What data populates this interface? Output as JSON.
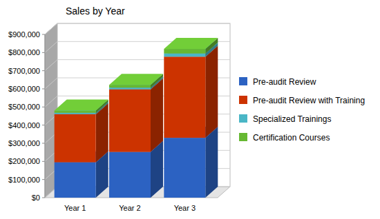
{
  "chart_data": {
    "type": "bar",
    "title": "Sales by Year",
    "categories": [
      "Year 1",
      "Year 2",
      "Year 3"
    ],
    "series": [
      {
        "name": "Pre-audit Review",
        "color": "#2c62c2",
        "values": [
          195000,
          252000,
          330000
        ]
      },
      {
        "name": "Pre-audit Review with Training",
        "color": "#cc3300",
        "values": [
          265000,
          345000,
          447000
        ]
      },
      {
        "name": "Specialized Trainings",
        "color": "#4ab6c6",
        "values": [
          8000,
          10000,
          18000
        ]
      },
      {
        "name": "Certification Courses",
        "color": "#66b832",
        "values": [
          12000,
          15000,
          25000
        ]
      }
    ],
    "ylim": [
      0,
      900000
    ],
    "yticks": [
      {
        "value": 0,
        "label": "$0"
      },
      {
        "value": 100000,
        "label": "$100,000"
      },
      {
        "value": 200000,
        "label": "$200,000"
      },
      {
        "value": 300000,
        "label": "$300,000"
      },
      {
        "value": 400000,
        "label": "$400,000"
      },
      {
        "value": 500000,
        "label": "$500,000"
      },
      {
        "value": 600000,
        "label": "$600,000"
      },
      {
        "value": 700000,
        "label": "$700,000"
      },
      {
        "value": 800000,
        "label": "$800,000"
      },
      {
        "value": 900000,
        "label": "$900,000"
      }
    ],
    "stacked": true,
    "grid": true,
    "legend": "right"
  }
}
